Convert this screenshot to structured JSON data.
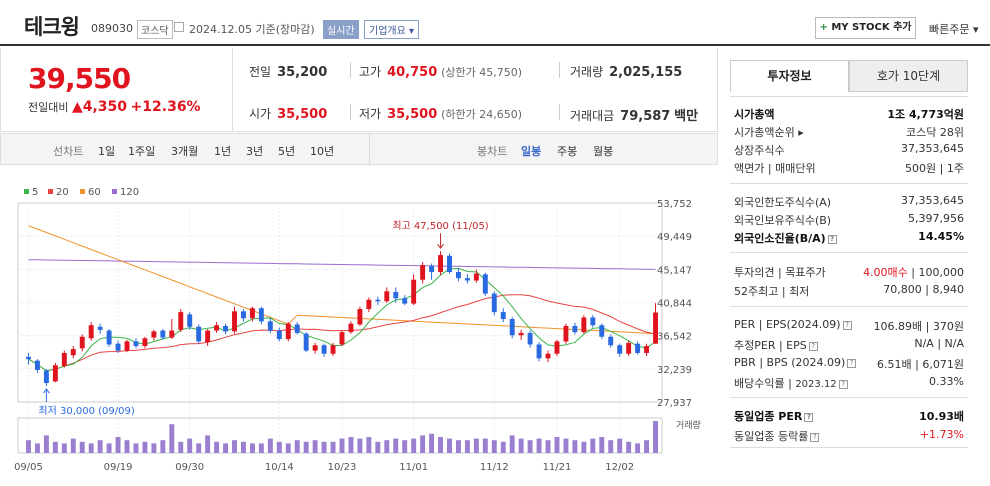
{
  "header": {
    "name": "테크윙",
    "code": "089030",
    "market": "코스닥",
    "date": "2024.12.05 기준(장마감)",
    "realtime": "실시간",
    "company_info": "기업개요 ▾",
    "mystock": "MY STOCK 추가",
    "mystock_plus": "+",
    "quick_order": "빠른주문 ▾"
  },
  "summary": {
    "price": "39,550",
    "change_label": "전일대비",
    "change_amount": "▲4,350",
    "change_pct": "+12.36%",
    "prev_label": "전일",
    "prev": "35,200",
    "high_label": "고가",
    "high": "40,750",
    "upper_limit": "(상한가 45,750)",
    "volume_label": "거래량",
    "volume": "2,025,155",
    "open_label": "시가",
    "open": "35,500",
    "low_label": "저가",
    "low": "35,500",
    "lower_limit": "(하한가 24,650)",
    "amount_label": "거래대금",
    "amount": "79,587",
    "amount_unit": "백만"
  },
  "toolbar": {
    "line_chart": "선차트",
    "d1": "1일",
    "w1": "1주일",
    "m3": "3개월",
    "y1": "1년",
    "y3": "3년",
    "y5": "5년",
    "y10": "10년",
    "candle": "봉차트",
    "daily": "일봉",
    "weekly": "주봉",
    "monthly": "월봉"
  },
  "legend": [
    "5",
    "20",
    "60",
    "120"
  ],
  "colors": {
    "up": "#e0141e",
    "down": "#2a6ae0",
    "ma5": "#39b54a",
    "ma20": "#e84343",
    "ma60": "#f0922a",
    "ma120": "#9a6cd0",
    "volume": "#9a7ed0"
  },
  "chart_data": {
    "type": "candlestick",
    "y_ticks": [
      "53,752",
      "49,449",
      "45,147",
      "40,844",
      "36,542",
      "32,239",
      "27,937"
    ],
    "ylim": [
      27937,
      53752
    ],
    "x_ticks": [
      "09/05",
      "09/19",
      "09/30",
      "10/14",
      "10/23",
      "11/01",
      "11/12",
      "11/21",
      "12/02"
    ],
    "volume_label": "거래량",
    "high_annotation": "최고 47,500 (11/05)",
    "low_annotation": "최저 30,000 (09/09)",
    "candles": [
      [
        33800,
        33500,
        34300,
        32800
      ],
      [
        33300,
        32100,
        33500,
        31700
      ],
      [
        32000,
        30400,
        32200,
        30000
      ],
      [
        30600,
        32700,
        33000,
        30500
      ],
      [
        32600,
        34300,
        34600,
        32400
      ],
      [
        34000,
        34800,
        35200,
        33600
      ],
      [
        34900,
        36400,
        36700,
        34500
      ],
      [
        36200,
        37900,
        38300,
        35900
      ],
      [
        37700,
        37300,
        38100,
        36800
      ],
      [
        37200,
        35400,
        37400,
        35100
      ],
      [
        35500,
        34600,
        35900,
        34300
      ],
      [
        34600,
        35800,
        36000,
        34400
      ],
      [
        35800,
        35200,
        36200,
        34900
      ],
      [
        35200,
        36200,
        36400,
        34900
      ],
      [
        36300,
        37100,
        37300,
        35900
      ],
      [
        37200,
        36300,
        37400,
        36000
      ],
      [
        36300,
        37200,
        38700,
        36100
      ],
      [
        37300,
        39600,
        40000,
        37000
      ],
      [
        39300,
        37700,
        39600,
        37300
      ],
      [
        37700,
        35800,
        38000,
        35500
      ],
      [
        35700,
        37200,
        37400,
        35200
      ],
      [
        37200,
        37900,
        38300,
        36900
      ],
      [
        37800,
        37100,
        38100,
        36700
      ],
      [
        37100,
        39700,
        40300,
        36800
      ],
      [
        39700,
        38800,
        40000,
        38400
      ],
      [
        38800,
        40100,
        40300,
        38400
      ],
      [
        40100,
        38400,
        40300,
        38000
      ],
      [
        38400,
        37200,
        38800,
        36900
      ],
      [
        37200,
        36100,
        37600,
        35800
      ],
      [
        36100,
        38100,
        38300,
        35800
      ],
      [
        38000,
        36900,
        38300,
        36700
      ],
      [
        36800,
        34600,
        37000,
        34400
      ],
      [
        34600,
        35300,
        35600,
        34200
      ],
      [
        35300,
        34200,
        35500,
        33800
      ],
      [
        34200,
        35300,
        35600,
        33900
      ],
      [
        35400,
        37000,
        37200,
        35200
      ],
      [
        37000,
        38100,
        38400,
        36800
      ],
      [
        38000,
        40000,
        40300,
        37800
      ],
      [
        40000,
        41200,
        41500,
        39600
      ],
      [
        41200,
        41000,
        41600,
        40500
      ],
      [
        41000,
        42300,
        42800,
        40800
      ],
      [
        42200,
        41400,
        42800,
        40800
      ],
      [
        41400,
        40700,
        41800,
        40500
      ],
      [
        40700,
        43800,
        44500,
        40500
      ],
      [
        43800,
        45700,
        46100,
        43300
      ],
      [
        45600,
        44800,
        45900,
        43800
      ],
      [
        44800,
        47000,
        47500,
        44400
      ],
      [
        46900,
        44800,
        47200,
        44600
      ],
      [
        44800,
        44000,
        45300,
        43600
      ],
      [
        44000,
        43700,
        44500,
        43300
      ],
      [
        43700,
        44600,
        45100,
        43400
      ],
      [
        44500,
        42000,
        44700,
        41700
      ],
      [
        42000,
        39600,
        42300,
        39200
      ],
      [
        39600,
        38700,
        40100,
        38300
      ],
      [
        38700,
        36600,
        39000,
        36200
      ],
      [
        36600,
        36900,
        37300,
        36000
      ],
      [
        36900,
        35400,
        37200,
        35000
      ],
      [
        35400,
        33600,
        35700,
        33200
      ],
      [
        33600,
        34200,
        34600,
        33100
      ],
      [
        34200,
        35800,
        36000,
        33900
      ],
      [
        35800,
        37800,
        38100,
        35500
      ],
      [
        37800,
        37000,
        38200,
        36700
      ],
      [
        37000,
        38900,
        39200,
        36800
      ],
      [
        38900,
        37900,
        39200,
        37600
      ],
      [
        37900,
        36400,
        38100,
        36100
      ],
      [
        36400,
        35300,
        36700,
        35000
      ],
      [
        35300,
        34200,
        35500,
        33800
      ],
      [
        34200,
        35600,
        35900,
        33900
      ],
      [
        35500,
        34300,
        35800,
        34100
      ],
      [
        34300,
        35200,
        35500,
        33900
      ],
      [
        35500,
        39550,
        40750,
        35500
      ]
    ],
    "volumes": [
      40,
      30,
      55,
      35,
      30,
      45,
      35,
      30,
      40,
      30,
      50,
      40,
      30,
      35,
      30,
      40,
      90,
      35,
      45,
      30,
      55,
      35,
      30,
      40,
      35,
      30,
      30,
      45,
      35,
      30,
      40,
      35,
      40,
      35,
      35,
      45,
      50,
      45,
      50,
      35,
      40,
      45,
      40,
      45,
      55,
      60,
      50,
      45,
      40,
      40,
      45,
      45,
      40,
      35,
      55,
      45,
      40,
      45,
      40,
      50,
      45,
      40,
      35,
      45,
      50,
      40,
      45,
      35,
      30,
      40,
      100
    ]
  },
  "side": {
    "tab_active": "투자정보",
    "tab_other": "호가 10단계",
    "r1": {
      "k": "시가총액",
      "v": "1조 4,773억원"
    },
    "r2": {
      "k": "시가총액순위",
      "v": "코스닥 28위"
    },
    "r3": {
      "k": "상장주식수",
      "v": "37,353,645"
    },
    "r4": {
      "k": "액면가",
      "k2": "매매단위",
      "v": "500원",
      "v2": "1주"
    },
    "r5": {
      "k": "외국인한도주식수(A)",
      "v": "37,353,645"
    },
    "r6": {
      "k": "외국인보유주식수(B)",
      "v": "5,397,956"
    },
    "r7": {
      "k": "외국인소진율(B/A)",
      "v": "14.45%"
    },
    "r8": {
      "k": "투자의견",
      "k2": "목표주가",
      "v": "4.00매수",
      "v2": "100,000"
    },
    "r9": {
      "k": "52주최고",
      "k2": "최저",
      "v": "70,800",
      "v2": "8,940"
    },
    "r10": {
      "k": "PER",
      "k2": "EPS(2024.09)",
      "v": "106.89배",
      "v2": "370원"
    },
    "r11": {
      "k": "추정PER",
      "k2": "EPS",
      "v": "N/A",
      "v2": "N/A"
    },
    "r12": {
      "k": "PBR",
      "k2": "BPS (2024.09)",
      "v": "6.51배",
      "v2": "6,071원"
    },
    "r13": {
      "k": "배당수익률",
      "k2": "2023.12",
      "v": "0.33%"
    },
    "r14": {
      "k": "동일업종 PER",
      "v": "10.93배"
    },
    "r15": {
      "k": "동일업종 등락률",
      "v": "+1.73%"
    }
  }
}
